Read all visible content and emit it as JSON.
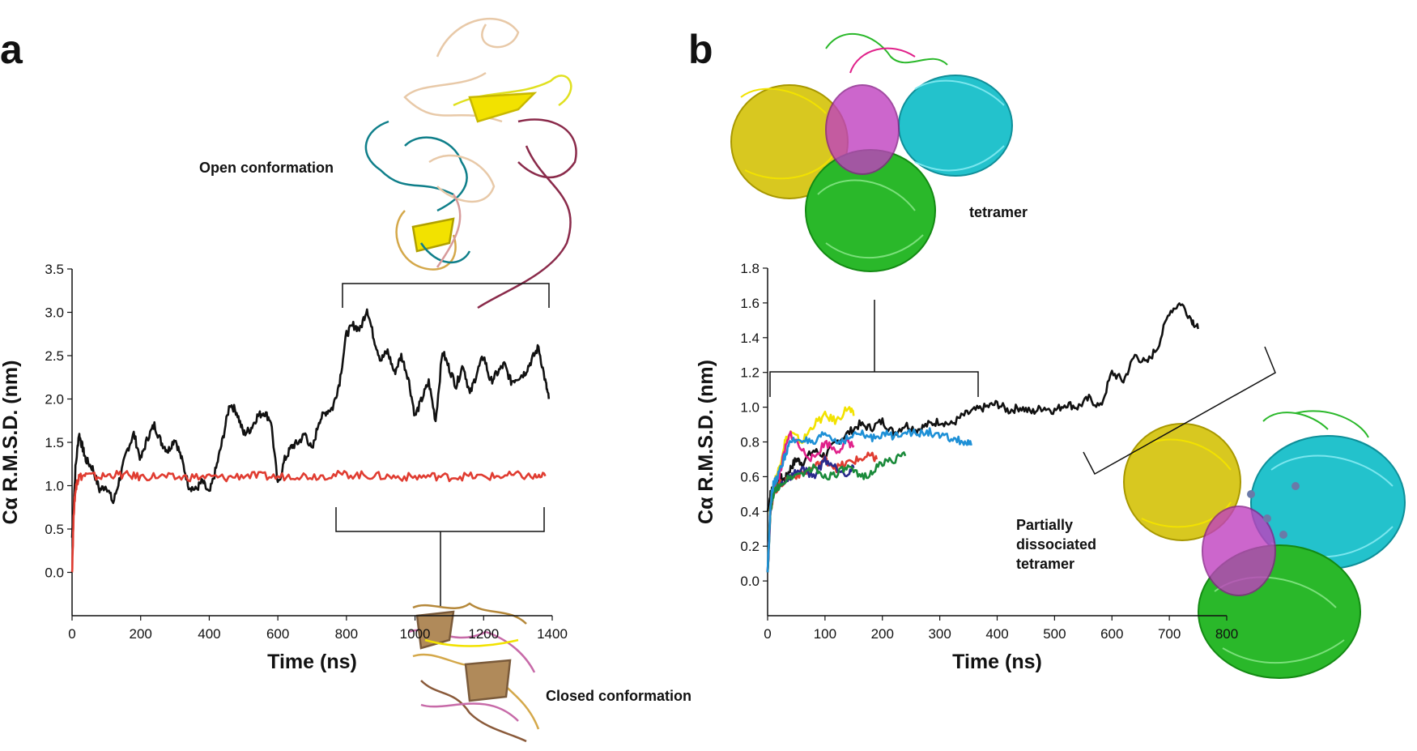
{
  "chart_data": [
    {
      "panel": "a",
      "type": "line",
      "xlabel": "Time (ns)",
      "ylabel": "Cα R.M.S.D. (nm)",
      "xlim": [
        0,
        1400
      ],
      "ylim": [
        -0.5,
        3.5
      ],
      "xticks": [
        0,
        200,
        400,
        600,
        800,
        1000,
        1200,
        1400
      ],
      "yticks": [
        0.0,
        0.5,
        1.0,
        1.5,
        2.0,
        2.5,
        3.0,
        3.5
      ],
      "grid": false,
      "annotations": [
        "Open conformation",
        "Closed conformation"
      ],
      "series": [
        {
          "color": "#111111",
          "x": [
            0,
            10,
            20,
            30,
            40,
            60,
            80,
            100,
            120,
            140,
            160,
            180,
            200,
            220,
            240,
            260,
            280,
            300,
            320,
            340,
            360,
            380,
            400,
            420,
            440,
            460,
            480,
            500,
            520,
            540,
            560,
            580,
            600,
            620,
            640,
            660,
            680,
            700,
            720,
            740,
            760,
            780,
            800,
            820,
            840,
            860,
            880,
            900,
            920,
            940,
            960,
            980,
            1000,
            1020,
            1040,
            1060,
            1080,
            1100,
            1120,
            1140,
            1160,
            1180,
            1200,
            1220,
            1240,
            1260,
            1280,
            1300,
            1320,
            1340,
            1360,
            1380,
            1390
          ],
          "values": [
            0.4,
            1.2,
            1.6,
            1.45,
            1.3,
            1.2,
            0.95,
            1.0,
            0.8,
            1.1,
            1.4,
            1.6,
            1.3,
            1.55,
            1.7,
            1.5,
            1.4,
            1.55,
            1.3,
            1.0,
            0.95,
            1.05,
            0.9,
            1.2,
            1.55,
            1.95,
            1.85,
            1.6,
            1.65,
            1.8,
            1.85,
            1.75,
            1.0,
            1.3,
            1.45,
            1.5,
            1.6,
            1.4,
            1.75,
            1.85,
            1.9,
            2.2,
            2.75,
            2.85,
            2.8,
            3.05,
            2.7,
            2.45,
            2.55,
            2.3,
            2.5,
            2.25,
            1.8,
            2.0,
            2.2,
            1.75,
            2.55,
            2.35,
            2.15,
            2.4,
            2.05,
            2.3,
            2.5,
            2.2,
            2.3,
            2.4,
            2.2,
            2.25,
            2.3,
            2.45,
            2.6,
            2.2,
            2.0
          ]
        },
        {
          "color": "#e03c31",
          "x": [
            0,
            5,
            10,
            15,
            20,
            40,
            80,
            120,
            160,
            200,
            250,
            300,
            350,
            400,
            450,
            500,
            550,
            600,
            650,
            700,
            750,
            800,
            850,
            900,
            950,
            1000,
            1050,
            1100,
            1150,
            1200,
            1250,
            1300,
            1350,
            1380
          ],
          "values": [
            0.0,
            0.7,
            0.95,
            1.05,
            1.1,
            1.12,
            1.1,
            1.13,
            1.12,
            1.1,
            1.11,
            1.09,
            1.1,
            1.1,
            1.09,
            1.12,
            1.11,
            1.1,
            1.12,
            1.11,
            1.12,
            1.13,
            1.12,
            1.11,
            1.1,
            1.1,
            1.11,
            1.1,
            1.11,
            1.1,
            1.11,
            1.12,
            1.1,
            1.11
          ]
        }
      ]
    },
    {
      "panel": "b",
      "type": "line",
      "xlabel": "Time (ns)",
      "ylabel": "Cα R.M.S.D. (nm)",
      "xlim": [
        0,
        800
      ],
      "ylim": [
        -0.2,
        1.8
      ],
      "xticks": [
        0,
        100,
        200,
        300,
        400,
        500,
        600,
        700,
        800
      ],
      "yticks": [
        0.0,
        0.2,
        0.4,
        0.6,
        0.8,
        1.0,
        1.2,
        1.4,
        1.6,
        1.8
      ],
      "grid": false,
      "annotations": [
        "tetramer",
        "Partially dissociated tetramer"
      ],
      "series": [
        {
          "color": "#111111",
          "x": [
            0,
            5,
            10,
            20,
            30,
            40,
            50,
            60,
            80,
            100,
            120,
            140,
            160,
            180,
            200,
            220,
            240,
            260,
            280,
            300,
            320,
            340,
            360,
            380,
            400,
            420,
            440,
            460,
            480,
            500,
            520,
            540,
            560,
            580,
            600,
            620,
            640,
            660,
            680,
            700,
            720,
            740,
            750
          ],
          "values": [
            0.4,
            0.5,
            0.55,
            0.6,
            0.58,
            0.65,
            0.7,
            0.68,
            0.75,
            0.72,
            0.8,
            0.85,
            0.9,
            0.88,
            0.92,
            0.85,
            0.9,
            0.87,
            0.9,
            0.92,
            0.9,
            0.95,
            0.98,
            1.0,
            1.02,
            0.98,
            1.0,
            0.97,
            1.0,
            0.98,
            1.02,
            1.0,
            1.05,
            1.0,
            1.2,
            1.15,
            1.3,
            1.25,
            1.35,
            1.55,
            1.6,
            1.5,
            1.45
          ]
        },
        {
          "color": "#f2e200",
          "x": [
            0,
            5,
            10,
            20,
            30,
            40,
            60,
            80,
            100,
            120,
            140,
            150
          ],
          "values": [
            0.05,
            0.45,
            0.55,
            0.65,
            0.8,
            0.85,
            0.8,
            0.9,
            0.95,
            0.92,
            1.0,
            0.95
          ]
        },
        {
          "color": "#e0218a",
          "x": [
            0,
            5,
            10,
            20,
            30,
            40,
            60,
            80,
            100,
            120,
            140,
            150
          ],
          "values": [
            0.05,
            0.4,
            0.5,
            0.6,
            0.75,
            0.85,
            0.75,
            0.7,
            0.8,
            0.75,
            0.8,
            0.78
          ]
        },
        {
          "color": "#e03c31",
          "x": [
            0,
            5,
            10,
            20,
            40,
            60,
            80,
            100,
            120,
            140,
            160,
            180,
            190
          ],
          "values": [
            0.05,
            0.4,
            0.5,
            0.55,
            0.6,
            0.62,
            0.65,
            0.7,
            0.65,
            0.68,
            0.7,
            0.72,
            0.7
          ]
        },
        {
          "color": "#2a2a8c",
          "x": [
            0,
            5,
            10,
            20,
            40,
            60,
            80,
            100,
            120,
            140,
            150
          ],
          "values": [
            0.05,
            0.4,
            0.5,
            0.55,
            0.6,
            0.65,
            0.6,
            0.7,
            0.65,
            0.62,
            0.65
          ]
        },
        {
          "color": "#1a8a3a",
          "x": [
            0,
            5,
            10,
            20,
            40,
            60,
            80,
            100,
            120,
            140,
            160,
            180,
            200,
            220,
            240
          ],
          "values": [
            0.05,
            0.4,
            0.5,
            0.55,
            0.6,
            0.62,
            0.65,
            0.6,
            0.62,
            0.65,
            0.6,
            0.62,
            0.68,
            0.7,
            0.72
          ]
        },
        {
          "color": "#1e90d6",
          "x": [
            0,
            5,
            10,
            20,
            30,
            40,
            60,
            80,
            100,
            120,
            140,
            160,
            180,
            200,
            220,
            240,
            260,
            280,
            300,
            320,
            340,
            355
          ],
          "values": [
            0.05,
            0.45,
            0.55,
            0.62,
            0.72,
            0.8,
            0.82,
            0.78,
            0.85,
            0.8,
            0.82,
            0.85,
            0.82,
            0.85,
            0.83,
            0.87,
            0.84,
            0.86,
            0.83,
            0.82,
            0.8,
            0.78
          ]
        }
      ]
    }
  ],
  "panels": {
    "a": {
      "letter": "a"
    },
    "b": {
      "letter": "b"
    }
  }
}
